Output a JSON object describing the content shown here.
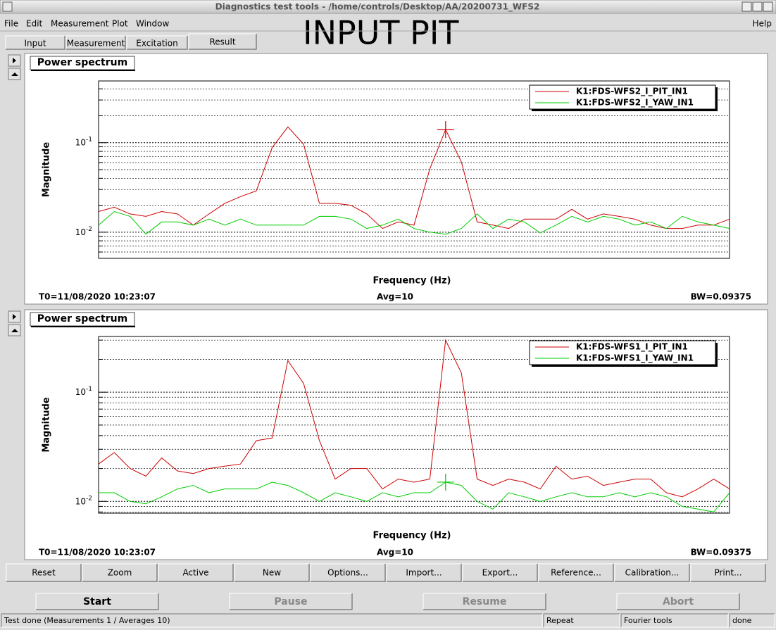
{
  "window": {
    "title": "Diagnostics test tools - /home/controls/Desktop/AA/20200731_WFS2"
  },
  "menu": [
    "File",
    "Edit",
    "Measurement",
    "Plot",
    "Window"
  ],
  "help": "Help",
  "tabs": [
    "Input",
    "Measurement",
    "Excitation",
    "Result"
  ],
  "overlay_text": "INPUT PIT",
  "panels": [
    {
      "label": "Power spectrum",
      "chart": {
        "type": "line",
        "ylabel": "Magnitude",
        "xlabel": "Frequency (Hz)",
        "log_y": true,
        "grid": true,
        "legend_position": "upper right",
        "ylim": [
          0.0051,
          0.49
        ],
        "yticks": [
          {
            "value": 0.01,
            "label": "10",
            "exponent": "-2"
          },
          {
            "value": 0.1,
            "label": "10",
            "exponent": "-1"
          }
        ],
        "series": [
          {
            "name": "K1:FDS-WFS2_I_PIT_IN1",
            "color": "#cc0000",
            "values": [
              0.017,
              0.019,
              0.016,
              0.015,
              0.017,
              0.016,
              0.012,
              0.016,
              0.021,
              0.025,
              0.029,
              0.088,
              0.15,
              0.096,
              0.021,
              0.021,
              0.02,
              0.016,
              0.011,
              0.013,
              0.012,
              0.051,
              0.14,
              0.061,
              0.013,
              0.012,
              0.011,
              0.014,
              0.014,
              0.014,
              0.018,
              0.014,
              0.016,
              0.015,
              0.014,
              0.012,
              0.011,
              0.011,
              0.012,
              0.012,
              0.014
            ]
          },
          {
            "name": "K1:FDS-WFS2_I_YAW_IN1",
            "color": "#00cc00",
            "values": [
              0.012,
              0.017,
              0.015,
              0.0095,
              0.013,
              0.013,
              0.012,
              0.014,
              0.012,
              0.014,
              0.012,
              0.012,
              0.012,
              0.012,
              0.015,
              0.015,
              0.014,
              0.011,
              0.012,
              0.014,
              0.011,
              0.01,
              0.0095,
              0.011,
              0.016,
              0.011,
              0.014,
              0.013,
              0.0098,
              0.012,
              0.015,
              0.013,
              0.015,
              0.014,
              0.012,
              0.013,
              0.011,
              0.015,
              0.013,
              0.012,
              0.011
            ]
          }
        ]
      },
      "footer": {
        "t0": "T0=11/08/2020 10:23:07",
        "avg": "Avg=10",
        "bw": "BW=0.09375"
      }
    },
    {
      "label": "Power spectrum",
      "chart": {
        "type": "line",
        "ylabel": "Magnitude",
        "xlabel": "Frequency (Hz)",
        "log_y": true,
        "grid": true,
        "legend_position": "upper right",
        "ylim": [
          0.0078,
          0.324
        ],
        "yticks": [
          {
            "value": 0.01,
            "label": "10",
            "exponent": "-2"
          },
          {
            "value": 0.1,
            "label": "10",
            "exponent": "-1"
          }
        ],
        "series": [
          {
            "name": "K1:FDS-WFS1_I_PIT_IN1",
            "color": "#cc0000",
            "values": [
              0.022,
              0.028,
              0.02,
              0.017,
              0.025,
              0.019,
              0.018,
              0.02,
              0.021,
              0.022,
              0.036,
              0.038,
              0.195,
              0.12,
              0.036,
              0.016,
              0.02,
              0.02,
              0.013,
              0.016,
              0.015,
              0.016,
              0.3,
              0.15,
              0.016,
              0.014,
              0.016,
              0.015,
              0.013,
              0.021,
              0.016,
              0.017,
              0.014,
              0.015,
              0.016,
              0.016,
              0.012,
              0.011,
              0.013,
              0.016,
              0.013
            ]
          },
          {
            "name": "K1:FDS-WFS1_I_YAW_IN1",
            "color": "#00cc00",
            "values": [
              0.012,
              0.012,
              0.01,
              0.0095,
              0.011,
              0.013,
              0.014,
              0.012,
              0.013,
              0.013,
              0.013,
              0.015,
              0.014,
              0.012,
              0.01,
              0.012,
              0.011,
              0.01,
              0.012,
              0.011,
              0.012,
              0.012,
              0.015,
              0.014,
              0.01,
              0.0085,
              0.012,
              0.011,
              0.01,
              0.011,
              0.012,
              0.011,
              0.011,
              0.012,
              0.011,
              0.012,
              0.011,
              0.009,
              0.0085,
              0.008,
              0.012
            ]
          }
        ]
      },
      "footer": {
        "t0": "T0=11/08/2020 10:23:07",
        "avg": "Avg=10",
        "bw": "BW=0.09375"
      }
    }
  ],
  "buttons": [
    "Reset",
    "Zoom",
    "Active",
    "New",
    "Options...",
    "Import...",
    "Export...",
    "Reference...",
    "Calibration...",
    "Print..."
  ],
  "controls": [
    {
      "label": "Start",
      "enabled": true
    },
    {
      "label": "Pause",
      "enabled": false
    },
    {
      "label": "Resume",
      "enabled": false
    },
    {
      "label": "Abort",
      "enabled": false
    }
  ],
  "status": [
    "Test done (Measurements 1 / Averages 10)",
    "Repeat",
    "Fourier tools",
    "done"
  ]
}
